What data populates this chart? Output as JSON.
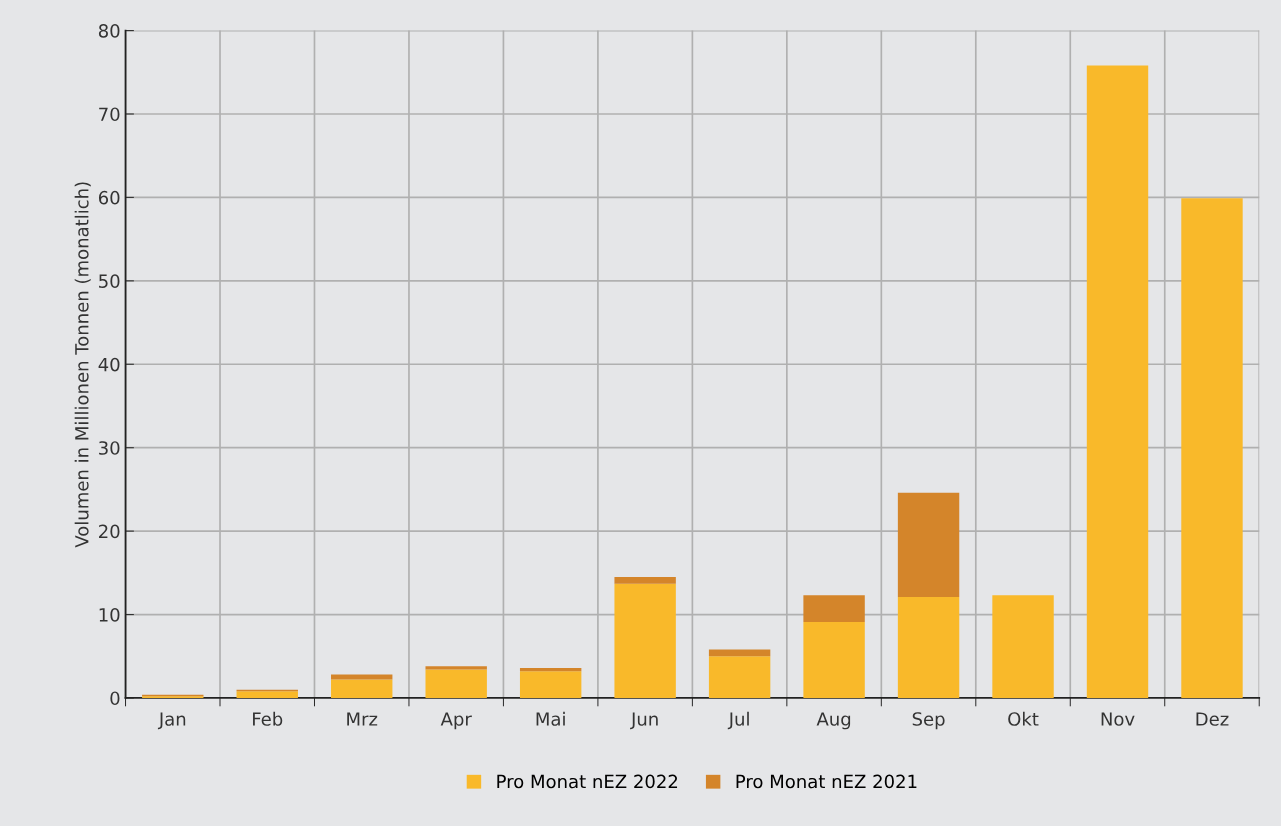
{
  "chart_data": {
    "type": "bar",
    "stacked": true,
    "ylabel": "Volumen in Millionen Tonnen (monatlich)",
    "categories": [
      "Jan",
      "Feb",
      "Mrz",
      "Apr",
      "Mai",
      "Jun",
      "Jul",
      "Aug",
      "Sep",
      "Okt",
      "Nov",
      "Dez"
    ],
    "series": [
      {
        "name": "Pro Monat nEZ 2022",
        "color": "#f9b92a",
        "values": [
          0.2,
          0.8,
          2.2,
          3.4,
          3.2,
          13.7,
          5.0,
          9.1,
          12.1,
          12.3,
          75.8,
          59.9
        ]
      },
      {
        "name": "Pro Monat nEZ 2021",
        "color": "#d4852a",
        "values": [
          0.2,
          0.2,
          0.6,
          0.4,
          0.4,
          0.8,
          0.8,
          3.2,
          12.5,
          0,
          0,
          0
        ]
      }
    ],
    "ylim": [
      0,
      80
    ],
    "yticks": [
      0,
      10,
      20,
      30,
      40,
      50,
      60,
      70,
      80
    ],
    "grid": true,
    "legend": "bottom"
  }
}
